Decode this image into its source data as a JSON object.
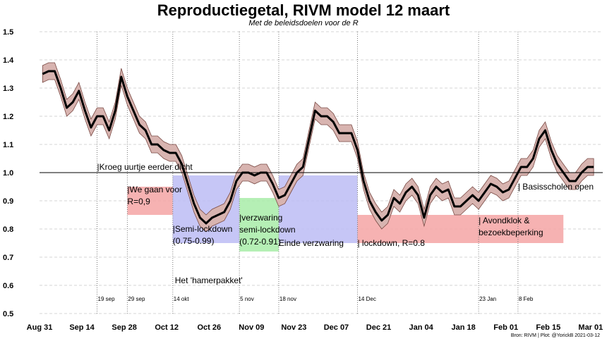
{
  "chart_data": {
    "type": "line",
    "title": "Reproductiegetal, RIVM model 12 maart",
    "subtitle": "Met de beleidsdoelen voor de R",
    "caption": "Bron: RIVM | Plot: @YorickB  2021-03-12",
    "xlabel": "",
    "ylabel": "",
    "ylim": [
      0.5,
      1.5
    ],
    "xlim_days": [
      0,
      186
    ],
    "x_origin": "2020-08-31",
    "yticks": [
      0.5,
      0.6,
      0.7,
      0.8,
      0.9,
      1.0,
      1.1,
      1.2,
      1.3,
      1.4,
      1.5
    ],
    "xticks": [
      {
        "day": 0,
        "label": "Aug 31"
      },
      {
        "day": 14,
        "label": "Sep 14"
      },
      {
        "day": 28,
        "label": "Sep 28"
      },
      {
        "day": 42,
        "label": "Oct 12"
      },
      {
        "day": 56,
        "label": "Oct 26"
      },
      {
        "day": 70,
        "label": "Nov 09"
      },
      {
        "day": 84,
        "label": "Nov 23"
      },
      {
        "day": 98,
        "label": "Dec 07"
      },
      {
        "day": 112,
        "label": "Dec 21"
      },
      {
        "day": 126,
        "label": "Jan 04"
      },
      {
        "day": 140,
        "label": "Jan 18"
      },
      {
        "day": 154,
        "label": "Feb 01"
      },
      {
        "day": 168,
        "label": "Feb 15"
      },
      {
        "day": 182,
        "label": "Mar 01"
      }
    ],
    "reference_line": 1.0,
    "series": [
      {
        "name": "R",
        "x": [
          1,
          3,
          5,
          7,
          9,
          11,
          13,
          15,
          17,
          19,
          21,
          23,
          25,
          27,
          29,
          31,
          33,
          35,
          37,
          39,
          41,
          43,
          45,
          47,
          49,
          51,
          53,
          55,
          57,
          59,
          61,
          63,
          65,
          67,
          69,
          71,
          73,
          75,
          77,
          79,
          81,
          83,
          85,
          87,
          89,
          91,
          93,
          95,
          97,
          99,
          101,
          103,
          105,
          107,
          109,
          111,
          113,
          115,
          117,
          119,
          121,
          123,
          125,
          127,
          129,
          131,
          133,
          135,
          137,
          139,
          141,
          143,
          145,
          147,
          149,
          151,
          153,
          155,
          157,
          159,
          161,
          163,
          165,
          167,
          169,
          171,
          173,
          175,
          177,
          179,
          181,
          183
        ],
        "y": [
          1.35,
          1.36,
          1.36,
          1.3,
          1.23,
          1.25,
          1.29,
          1.22,
          1.16,
          1.2,
          1.2,
          1.15,
          1.22,
          1.34,
          1.27,
          1.22,
          1.17,
          1.15,
          1.1,
          1.1,
          1.08,
          1.07,
          1.07,
          1.03,
          0.96,
          0.89,
          0.84,
          0.82,
          0.84,
          0.85,
          0.86,
          0.9,
          0.97,
          1.0,
          1.0,
          0.99,
          1.0,
          1.0,
          0.96,
          0.91,
          0.92,
          0.96,
          1.0,
          1.02,
          1.12,
          1.22,
          1.2,
          1.2,
          1.18,
          1.14,
          1.14,
          1.14,
          1.08,
          0.97,
          0.9,
          0.86,
          0.83,
          0.85,
          0.91,
          0.89,
          0.93,
          0.95,
          0.92,
          0.84,
          0.92,
          0.95,
          0.93,
          0.94,
          0.88,
          0.88,
          0.9,
          0.92,
          0.9,
          0.93,
          0.96,
          0.95,
          0.93,
          0.94,
          0.98,
          1.02,
          1.02,
          1.05,
          1.12,
          1.15,
          1.08,
          1.03,
          1.0,
          0.97,
          0.97,
          1.0,
          1.02,
          1.02
        ],
        "band": 0.03
      }
    ],
    "events": [
      {
        "day": 19,
        "date_label": "19 sep"
      },
      {
        "day": 29,
        "date_label": "29 sep"
      },
      {
        "day": 44,
        "date_label": "14 okt"
      },
      {
        "day": 66,
        "date_label": "5 nov"
      },
      {
        "day": 79,
        "date_label": "18 nov"
      },
      {
        "day": 105,
        "date_label": "14 Dec"
      },
      {
        "day": 145,
        "date_label": "23 Jan"
      },
      {
        "day": 158,
        "date_label": "8 Feb"
      }
    ],
    "target_zones": [
      {
        "x0": 29,
        "x1": 44,
        "y0": 0.85,
        "y1": 0.95,
        "color": "#f4a4a4",
        "label": "|We gaan voor R=0,9"
      },
      {
        "x0": 44,
        "x1": 66,
        "y0": 0.75,
        "y1": 0.99,
        "color": "#bcbcf4",
        "label": "|Semi-lockdown (0.75-0.99)"
      },
      {
        "x0": 66,
        "x1": 79,
        "y0": 0.72,
        "y1": 0.91,
        "color": "#a8eca8",
        "label": "|verzwaring semi-lockdown (0.72-0.91)"
      },
      {
        "x0": 79,
        "x1": 105,
        "y0": 0.75,
        "y1": 0.99,
        "color": "#bcbcf4",
        "label": "Einde verzwaring"
      },
      {
        "x0": 105,
        "x1": 173,
        "y0": 0.75,
        "y1": 0.85,
        "color": "#f4a4a4",
        "label": "| lockdown, R=0.8"
      }
    ],
    "annotations": [
      {
        "text": "|Kroeg uurtje eerder dicht",
        "day": 19,
        "y": 1.01
      },
      {
        "text": "| Avondklok & bezoekbeperking",
        "day": 145,
        "y": 0.82
      },
      {
        "text": "| Basisscholen open",
        "day": 158,
        "y": 0.94
      },
      {
        "text": "Het 'hamerpakket'",
        "day": 44,
        "y": 0.62
      }
    ]
  }
}
